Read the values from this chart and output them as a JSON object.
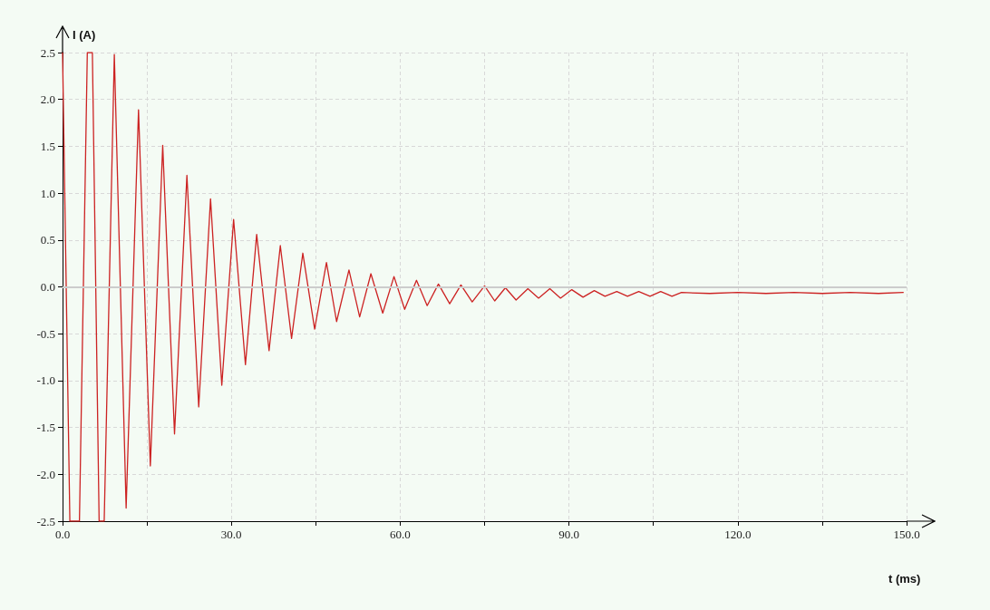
{
  "chart_data": {
    "type": "line",
    "xlabel": "t (ms)",
    "ylabel": "I (A)",
    "x": [
      0,
      1.3,
      3.0,
      4.4,
      5.3,
      6.5,
      7.4,
      9.2,
      11.3,
      13.5,
      15.6,
      17.8,
      19.9,
      22.1,
      24.2,
      26.3,
      28.3,
      30.4,
      32.5,
      34.5,
      36.7,
      38.7,
      40.7,
      42.7,
      44.8,
      46.9,
      48.7,
      50.9,
      52.8,
      54.8,
      56.9,
      58.9,
      60.8,
      62.9,
      64.8,
      66.8,
      68.8,
      70.8,
      72.8,
      75.0,
      76.8,
      78.7,
      80.6,
      82.7,
      84.6,
      86.6,
      88.5,
      90.5,
      92.5,
      94.5,
      96.4,
      98.5,
      100.4,
      102.4,
      104.4,
      106.3,
      108.3,
      110,
      115,
      120,
      125,
      130,
      135,
      140,
      145,
      149.4
    ],
    "series": [
      {
        "color": "#cc2222",
        "values": [
          2.5,
          -2.5,
          -2.5,
          2.5,
          2.5,
          -2.5,
          -2.5,
          2.48,
          -2.36,
          1.89,
          -1.91,
          1.51,
          -1.57,
          1.19,
          -1.28,
          0.94,
          -1.05,
          0.72,
          -0.83,
          0.56,
          -0.68,
          0.44,
          -0.55,
          0.36,
          -0.45,
          0.26,
          -0.37,
          0.18,
          -0.32,
          0.14,
          -0.28,
          0.11,
          -0.24,
          0.07,
          -0.2,
          0.03,
          -0.18,
          0.02,
          -0.16,
          0.01,
          -0.15,
          -0.01,
          -0.14,
          -0.02,
          -0.12,
          -0.02,
          -0.12,
          -0.03,
          -0.11,
          -0.04,
          -0.1,
          -0.05,
          -0.1,
          -0.05,
          -0.1,
          -0.05,
          -0.1,
          -0.06,
          -0.07,
          -0.06,
          -0.07,
          -0.06,
          -0.07,
          -0.06,
          -0.07,
          -0.06
        ]
      }
    ],
    "xlim": [
      0,
      150
    ],
    "xticks": [
      {
        "value": 0,
        "label": "0.0"
      },
      {
        "value": 15,
        "label": null
      },
      {
        "value": 30,
        "label": "30.0"
      },
      {
        "value": 45,
        "label": null
      },
      {
        "value": 60,
        "label": "60.0"
      },
      {
        "value": 75,
        "label": null
      },
      {
        "value": 90,
        "label": "90.0"
      },
      {
        "value": 105,
        "label": null
      },
      {
        "value": 120,
        "label": "120.0"
      },
      {
        "value": 135,
        "label": null
      },
      {
        "value": 150,
        "label": "150.0"
      }
    ],
    "ylim": [
      -2.5,
      2.5
    ],
    "yticks": [
      {
        "value": -2.5,
        "label": "-2.5"
      },
      {
        "value": -2,
        "label": "-2.0"
      },
      {
        "value": -1.5,
        "label": "-1.5"
      },
      {
        "value": -1,
        "label": "-1.0"
      },
      {
        "value": -0.5,
        "label": "-0.5"
      },
      {
        "value": 0,
        "label": "0.0"
      },
      {
        "value": 0.5,
        "label": "0.5"
      },
      {
        "value": 1,
        "label": "1.0"
      },
      {
        "value": 1.5,
        "label": "1.5"
      },
      {
        "value": 2,
        "label": "2.0"
      },
      {
        "value": 2.5,
        "label": "2.5"
      }
    ],
    "ref_lines": [
      {
        "axis": "y",
        "value": 0,
        "color": "#cccccc"
      }
    ],
    "grid": true,
    "marker": "none",
    "line_style": "solid"
  }
}
